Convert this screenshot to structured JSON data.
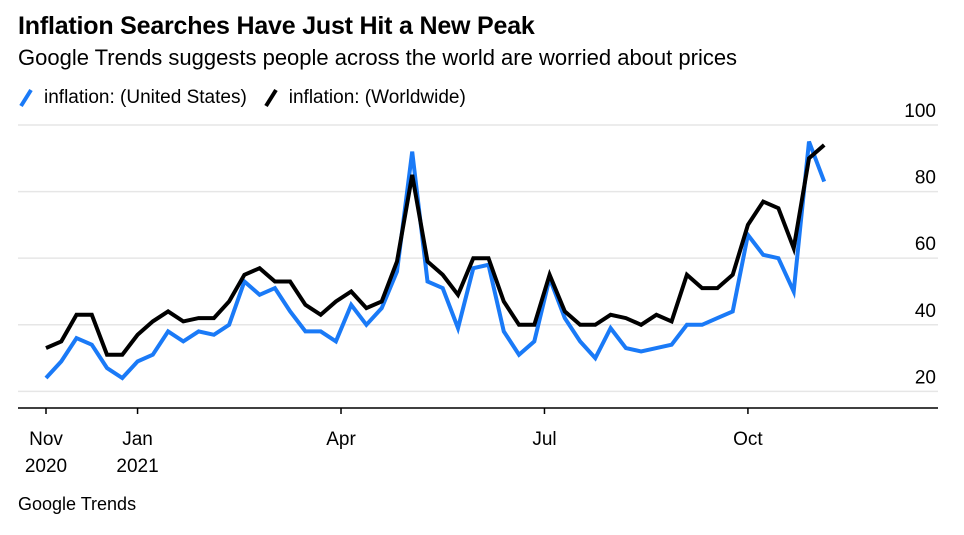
{
  "title": "Inflation Searches Have Just Hit a New Peak",
  "subtitle": "Google Trends suggests people across the world are worried about prices",
  "source": "Google Trends",
  "colors": {
    "us": "#1a7af7",
    "world": "#000000",
    "grid": "#e6e6e6",
    "axis": "#000000"
  },
  "chart_data": {
    "type": "line",
    "ylim": [
      15,
      100
    ],
    "y_ticks": [
      20,
      40,
      60,
      80,
      100
    ],
    "x_ticks": [
      {
        "week": 0,
        "line1": "Nov",
        "line2": "2020"
      },
      {
        "week": 9,
        "line1": "Jan",
        "line2": "2021"
      },
      {
        "week": 29,
        "line1": "Apr",
        "line2": ""
      },
      {
        "week": 49,
        "line1": "Jul",
        "line2": ""
      },
      {
        "week": 69,
        "line1": "Oct",
        "line2": ""
      }
    ],
    "x_range": [
      -2.5,
      84
    ],
    "series": [
      {
        "name": "inflation: (United States)",
        "color": "#1a7af7",
        "x": [
          0,
          1.5,
          3,
          4.5,
          6,
          7.5,
          9,
          10.5,
          12,
          13.5,
          15,
          16.5,
          18,
          19.5,
          21,
          22.5,
          24,
          25.5,
          27,
          28.5,
          30,
          31.5,
          33,
          34.5,
          36,
          37.5,
          39,
          40.5,
          42,
          43.5,
          45,
          46.5,
          48,
          49.5,
          51,
          52.5,
          54,
          55.5,
          57,
          58.5,
          60,
          61.5,
          63,
          64.5,
          66,
          67.5,
          69,
          70.5,
          72,
          73.5,
          75,
          76.5,
          78,
          79.5,
          81
        ],
        "values": [
          24,
          29,
          36,
          34,
          27,
          24,
          29,
          31,
          38,
          35,
          38,
          37,
          40,
          53,
          49,
          51,
          44,
          38,
          38,
          35,
          46,
          40,
          45,
          56,
          92,
          53,
          51,
          39,
          57,
          58,
          38,
          31,
          35,
          54,
          42,
          35,
          30,
          39,
          33,
          32,
          33,
          34,
          40,
          40,
          42,
          44,
          67,
          61,
          60,
          50,
          95,
          83,
          null,
          null,
          null
        ]
      },
      {
        "name": "inflation: (Worldwide)",
        "color": "#000000",
        "x": [
          0,
          1.5,
          3,
          4.5,
          6,
          7.5,
          9,
          10.5,
          12,
          13.5,
          15,
          16.5,
          18,
          19.5,
          21,
          22.5,
          24,
          25.5,
          27,
          28.5,
          30,
          31.5,
          33,
          34.5,
          36,
          37.5,
          39,
          40.5,
          42,
          43.5,
          45,
          46.5,
          48,
          49.5,
          51,
          52.5,
          54,
          55.5,
          57,
          58.5,
          60,
          61.5,
          63,
          64.5,
          66,
          67.5,
          69,
          70.5,
          72,
          73.5,
          75,
          76.5,
          78,
          79.5,
          81
        ],
        "values": [
          33,
          35,
          43,
          43,
          31,
          31,
          37,
          41,
          44,
          41,
          42,
          42,
          47,
          55,
          57,
          53,
          53,
          46,
          43,
          47,
          50,
          45,
          47,
          59,
          85,
          59,
          55,
          49,
          60,
          60,
          47,
          40,
          40,
          55,
          44,
          40,
          40,
          43,
          42,
          40,
          43,
          41,
          55,
          51,
          51,
          55,
          70,
          77,
          75,
          63,
          90,
          94,
          null,
          null,
          null
        ]
      }
    ]
  },
  "legend": [
    {
      "label": "inflation: (United States)",
      "color": "#1a7af7"
    },
    {
      "label": "inflation: (Worldwide)",
      "color": "#000000"
    }
  ]
}
